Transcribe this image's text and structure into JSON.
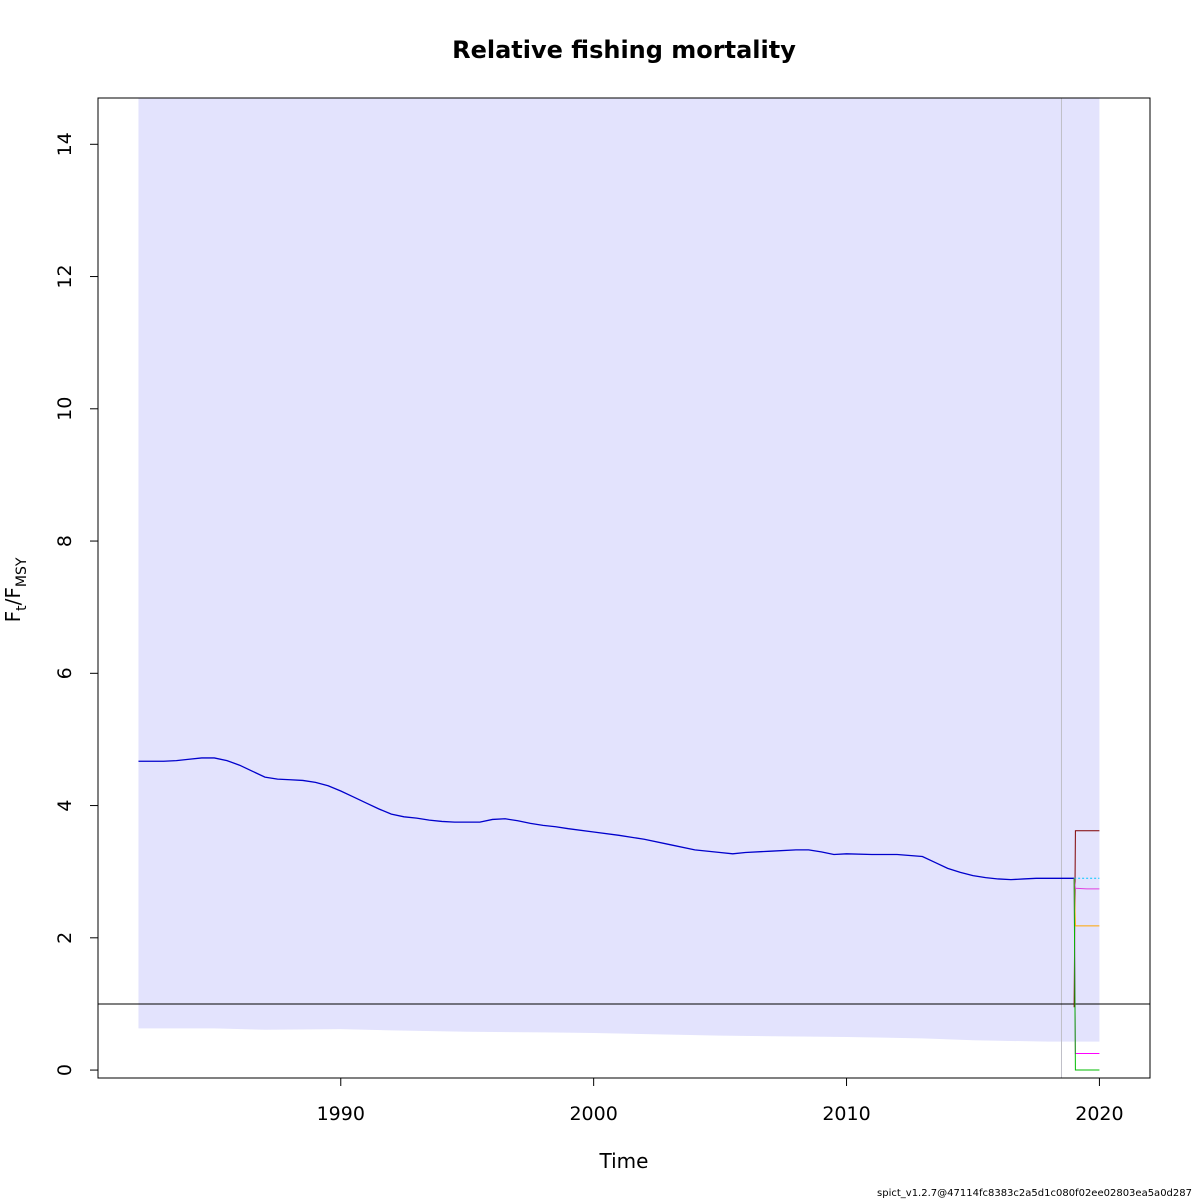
{
  "chart_data": {
    "type": "line",
    "title": "Relative fishing mortality",
    "xlabel": "Time",
    "ylabel": {
      "main": "F",
      "sub1": "t",
      "slash": "/F",
      "sub2": "MSY"
    },
    "xlim": [
      1980.4,
      2022.0
    ],
    "ylim": [
      -0.12,
      14.7
    ],
    "x_ticks": [
      1990,
      2000,
      2010,
      2020
    ],
    "x_tick_labels": [
      "1990",
      "2000",
      "2010",
      "2020"
    ],
    "y_ticks": [
      0,
      2,
      4,
      6,
      8,
      10,
      12,
      14
    ],
    "y_tick_labels": [
      "0",
      "2",
      "4",
      "6",
      "8",
      "10",
      "12",
      "14"
    ],
    "reference_line": {
      "y": 1.0,
      "color": "#000000"
    },
    "last_observation_line": {
      "x": 2018.5,
      "color": "#c0c0c8"
    },
    "confidence_band": {
      "color": "#e3e3fd",
      "x": [
        1982.0,
        1985.0,
        1987.0,
        1990.0,
        1992.0,
        1995.0,
        1998.0,
        2000.0,
        2005.0,
        2010.0,
        2013.0,
        2015.0,
        2018.0,
        2019.0,
        2020.0
      ],
      "lower": [
        0.63,
        0.63,
        0.61,
        0.62,
        0.6,
        0.58,
        0.57,
        0.56,
        0.52,
        0.5,
        0.48,
        0.45,
        0.43,
        0.43,
        0.43
      ],
      "upper": [
        14.7,
        14.7,
        14.7,
        14.7,
        14.7,
        14.7,
        14.7,
        14.7,
        14.7,
        14.7,
        14.7,
        14.7,
        14.7,
        14.7,
        14.7
      ]
    },
    "series": [
      {
        "color": "#0000cc",
        "x": [
          1982.0,
          1983.0,
          1983.5,
          1984.0,
          1984.5,
          1985.0,
          1985.5,
          1986.0,
          1986.5,
          1987.0,
          1987.5,
          1988.0,
          1988.5,
          1989.0,
          1989.5,
          1990.0,
          1990.5,
          1991.0,
          1991.5,
          1992.0,
          1992.5,
          1993.0,
          1993.5,
          1994.0,
          1994.5,
          1995.0,
          1995.5,
          1996.0,
          1996.5,
          1997.0,
          1997.5,
          1998.0,
          1998.5,
          1999.0,
          2000.0,
          2001.0,
          2002.0,
          2003.0,
          2004.0,
          2005.0,
          2005.5,
          2006.0,
          2007.0,
          2008.0,
          2008.5,
          2009.0,
          2009.5,
          2010.0,
          2011.0,
          2012.0,
          2013.0,
          2013.5,
          2014.0,
          2014.5,
          2015.0,
          2015.5,
          2016.0,
          2016.5,
          2017.0,
          2017.5,
          2018.0,
          2018.5,
          2019.0
        ],
        "y": [
          4.67,
          4.67,
          4.68,
          4.7,
          4.72,
          4.72,
          4.68,
          4.61,
          4.52,
          4.43,
          4.4,
          4.39,
          4.38,
          4.35,
          4.3,
          4.22,
          4.13,
          4.04,
          3.95,
          3.87,
          3.83,
          3.81,
          3.78,
          3.76,
          3.75,
          3.75,
          3.75,
          3.79,
          3.8,
          3.77,
          3.73,
          3.7,
          3.68,
          3.65,
          3.6,
          3.55,
          3.49,
          3.41,
          3.33,
          3.29,
          3.27,
          3.29,
          3.31,
          3.33,
          3.33,
          3.3,
          3.26,
          3.27,
          3.26,
          3.26,
          3.23,
          3.14,
          3.05,
          2.99,
          2.94,
          2.91,
          2.89,
          2.88,
          2.89,
          2.9,
          2.9,
          2.9,
          2.9
        ]
      }
    ],
    "forecast_series": [
      {
        "color": "#800000",
        "x": [
          2019.0,
          2019.05,
          2020.0
        ],
        "y": [
          0.95,
          3.62,
          3.62
        ]
      },
      {
        "color": "#00c8ff",
        "dashed": true,
        "x": [
          2019.0,
          2020.0
        ],
        "y": [
          2.9,
          2.9
        ]
      },
      {
        "color": "#e040e0",
        "x": [
          2019.0,
          2019.05,
          2019.5,
          2020.0
        ],
        "y": [
          2.9,
          2.75,
          2.74,
          2.74
        ]
      },
      {
        "color": "#ffa500",
        "x": [
          2019.0,
          2019.05,
          2020.0
        ],
        "y": [
          2.9,
          2.18,
          2.18
        ]
      },
      {
        "color": "#ff00ff",
        "x": [
          2019.0,
          2019.05,
          2020.0
        ],
        "y": [
          2.9,
          0.25,
          0.25
        ]
      },
      {
        "color": "#00bb00",
        "x": [
          2019.0,
          2019.05,
          2020.0
        ],
        "y": [
          2.9,
          0.0,
          0.0
        ]
      }
    ]
  },
  "footer": "spict_v1.2.7@47114fc8383c2a5d1c080f02ee02803ea5a0d287"
}
